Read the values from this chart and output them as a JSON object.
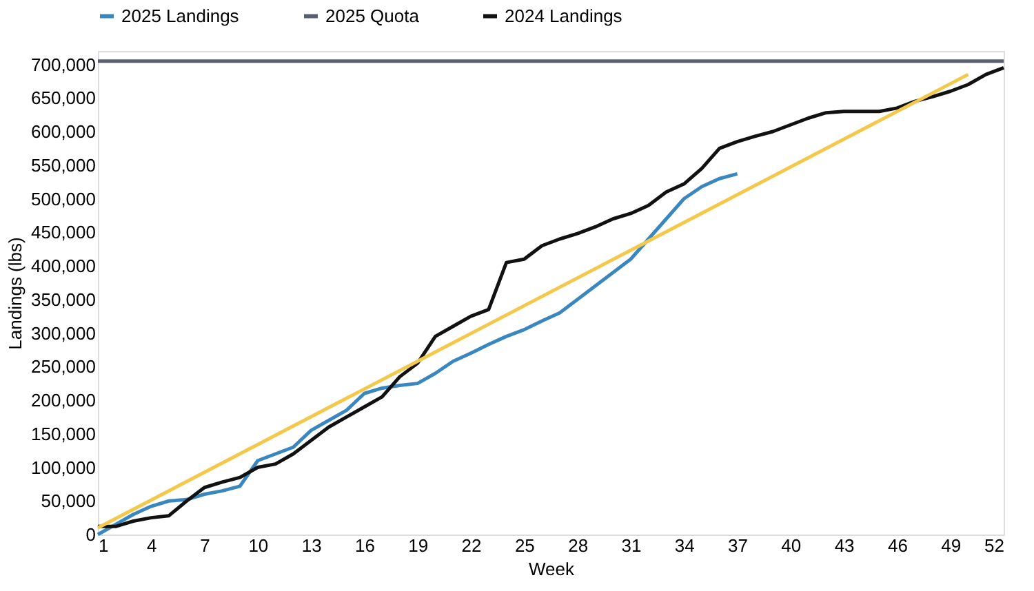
{
  "chart_data": {
    "type": "line",
    "xlabel": "Week",
    "ylabel": "Landings (lbs)",
    "xlim": [
      1,
      52
    ],
    "xticks": [
      1,
      4,
      7,
      10,
      13,
      16,
      19,
      22,
      25,
      28,
      31,
      34,
      37,
      40,
      43,
      46,
      49,
      52
    ],
    "ylim": [
      0,
      720000
    ],
    "yticks": [
      0,
      {
        "value": 50000,
        "label": "50,000"
      },
      {
        "value": 100000,
        "label": "100,000"
      },
      {
        "value": 150000,
        "label": "150,000"
      },
      {
        "value": 200000,
        "label": "200,000"
      },
      {
        "value": 250000,
        "label": "250,000"
      },
      {
        "value": 300000,
        "label": "300,000"
      },
      {
        "value": 350000,
        "label": "350,000"
      },
      {
        "value": 400000,
        "label": "400,000"
      },
      {
        "value": 450000,
        "label": "450,000"
      },
      {
        "value": 500000,
        "label": "500,000"
      },
      {
        "value": 550000,
        "label": "550,000"
      },
      {
        "value": 600000,
        "label": "600,000"
      },
      {
        "value": 650000,
        "label": "650,000"
      },
      {
        "value": 700000,
        "label": "700,000"
      }
    ],
    "grid": false,
    "legend": "top",
    "marker": "none",
    "line_style": "solid",
    "series": [
      {
        "name": "2025 Landings",
        "color": "#3a87c0",
        "x": [
          1,
          2,
          3,
          4,
          5,
          6,
          7,
          8,
          9,
          10,
          11,
          12,
          13,
          14,
          15,
          16,
          17,
          18,
          19,
          20,
          21,
          22,
          23,
          24,
          25,
          26,
          27,
          28,
          29,
          30,
          31,
          32,
          33,
          34,
          35,
          36,
          37
        ],
        "values": [
          0,
          15000,
          30000,
          42000,
          50000,
          52000,
          60000,
          65000,
          72000,
          110000,
          120000,
          130000,
          155000,
          170000,
          185000,
          210000,
          218000,
          222000,
          225000,
          240000,
          258000,
          270000,
          283000,
          295000,
          305000,
          318000,
          330000,
          350000,
          370000,
          390000,
          410000,
          440000,
          470000,
          500000,
          518000,
          530000,
          537000
        ]
      },
      {
        "name": "2025 Quota",
        "color": "#5a5f70",
        "x": [
          1,
          52
        ],
        "values": [
          705000,
          705000
        ]
      },
      {
        "name": "2024 Landings",
        "color": "#111111",
        "x": [
          1,
          2,
          3,
          4,
          5,
          6,
          7,
          8,
          9,
          10,
          11,
          12,
          13,
          14,
          15,
          16,
          17,
          18,
          19,
          20,
          21,
          22,
          23,
          24,
          25,
          26,
          27,
          28,
          29,
          30,
          31,
          32,
          33,
          34,
          35,
          36,
          37,
          38,
          39,
          40,
          41,
          42,
          43,
          44,
          45,
          46,
          47,
          48,
          49,
          50,
          51,
          52
        ],
        "values": [
          12000,
          12000,
          20000,
          25000,
          28000,
          50000,
          70000,
          78000,
          85000,
          100000,
          105000,
          120000,
          140000,
          160000,
          175000,
          190000,
          205000,
          235000,
          255000,
          295000,
          310000,
          325000,
          335000,
          405000,
          410000,
          430000,
          440000,
          448000,
          458000,
          470000,
          478000,
          490000,
          510000,
          522000,
          545000,
          575000,
          585000,
          593000,
          600000,
          610000,
          620000,
          628000,
          630000,
          630000,
          630000,
          635000,
          645000,
          652000,
          660000,
          670000,
          685000,
          695000
        ]
      },
      {
        "color": "#f2c94c",
        "x": [
          1,
          50
        ],
        "values": [
          10000,
          685000
        ]
      }
    ]
  }
}
